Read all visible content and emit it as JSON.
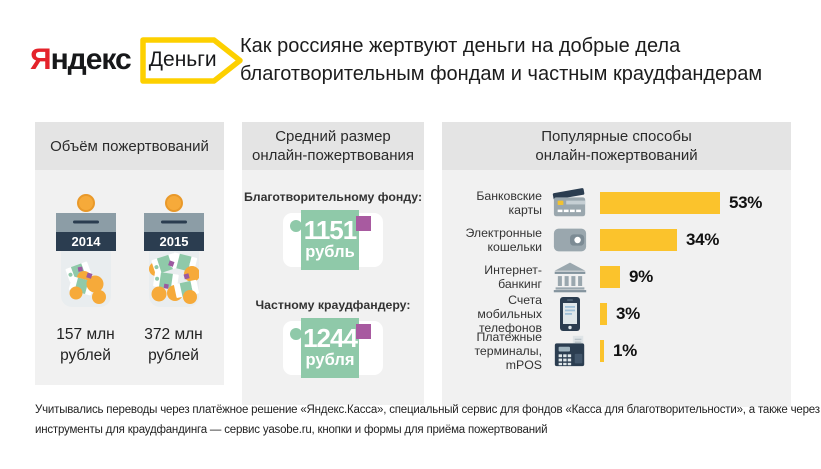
{
  "brand": {
    "logo_first_letter": "Я",
    "logo_rest": "ндекс",
    "tag_label": "Деньги",
    "logo_red": "#e4232b",
    "tag_yellow": "#fdd000"
  },
  "title": {
    "line1": "Как россияне жертвуют деньги на добрые дела",
    "line2": "благотворительным фондам и частным краудфандерам"
  },
  "panels": {
    "volume": {
      "header": "Объём пожертвований",
      "jars": [
        {
          "year": "2014",
          "amount_value": "157 млн",
          "amount_unit": "рублей"
        },
        {
          "year": "2015",
          "amount_value": "372 млн",
          "amount_unit": "рублей"
        }
      ]
    },
    "average": {
      "header_line1": "Средний размер",
      "header_line2": "онлайн-пожертвования",
      "notes": [
        {
          "label": "Благотворительному фонду:",
          "value": "1151",
          "unit": "рубль"
        },
        {
          "label": "Частному краудфандеру:",
          "value": "1244",
          "unit": "рубля"
        }
      ]
    },
    "methods": {
      "header_line1": "Популярные способы",
      "header_line2": "онлайн-пожертвований",
      "rows": [
        {
          "label_line1": "Банковские",
          "label_line2": "карты",
          "icon": "bank-card-icon",
          "percent": 53,
          "percent_label": "53%"
        },
        {
          "label_line1": "Электронные",
          "label_line2": "кошельки",
          "icon": "e-wallet-icon",
          "percent": 34,
          "percent_label": "34%"
        },
        {
          "label_line1": "Интернет-",
          "label_line2": "банкинг",
          "icon": "internet-banking-icon",
          "percent": 9,
          "percent_label": "9%"
        },
        {
          "label_line1": "Счета мобильных",
          "label_line2": "телефонов",
          "icon": "mobile-phone-icon",
          "percent": 3,
          "percent_label": "3%"
        },
        {
          "label_line1": "Платежные",
          "label_line2": "терминалы, mPOS",
          "icon": "payment-terminal-icon",
          "percent": 1,
          "percent_label": "1%"
        }
      ]
    }
  },
  "footer": {
    "line1": "Учитывались переводы через платёжное решение «Яндекс.Касса», специальный сервис для фондов «Касса для благотворительности», а также через",
    "line2": "инструменты для краудфандинга — сервис yasobe.ru, кнопки и формы для приёма пожертвований"
  },
  "colors": {
    "bar_yellow": "#fbc32c",
    "tag_yellow": "#fdd000",
    "navy": "#2b3d50",
    "lid_gray": "#8c9da6",
    "icon_gray": "#9aa7ae",
    "green": "#8fc9a9",
    "purple": "#a85aa0",
    "coin_orange": "#f6aa3a",
    "panel_header_bg": "#e4e4e4",
    "panel_body_bg": "#f1f1f1"
  },
  "chart_data": [
    {
      "type": "bar",
      "title": "Объём пожертвований",
      "categories": [
        "2014",
        "2015"
      ],
      "values": [
        157,
        372
      ],
      "ylabel": "млн рублей"
    },
    {
      "type": "bar",
      "title": "Средний размер онлайн-пожертвования",
      "categories": [
        "Благотворительному фонду",
        "Частному краудфандеру"
      ],
      "values": [
        1151,
        1244
      ],
      "ylabel": "рублей"
    },
    {
      "type": "bar",
      "orientation": "horizontal",
      "title": "Популярные способы онлайн-пожертвований",
      "categories": [
        "Банковские карты",
        "Электронные кошельки",
        "Интернет-банкинг",
        "Счета мобильных телефонов",
        "Платежные терминалы, mPOS"
      ],
      "values": [
        53,
        34,
        9,
        3,
        1
      ],
      "xlabel": "%",
      "xlim": [
        0,
        100
      ],
      "data_labels": [
        "53%",
        "34%",
        "9%",
        "3%",
        "1%"
      ]
    }
  ]
}
